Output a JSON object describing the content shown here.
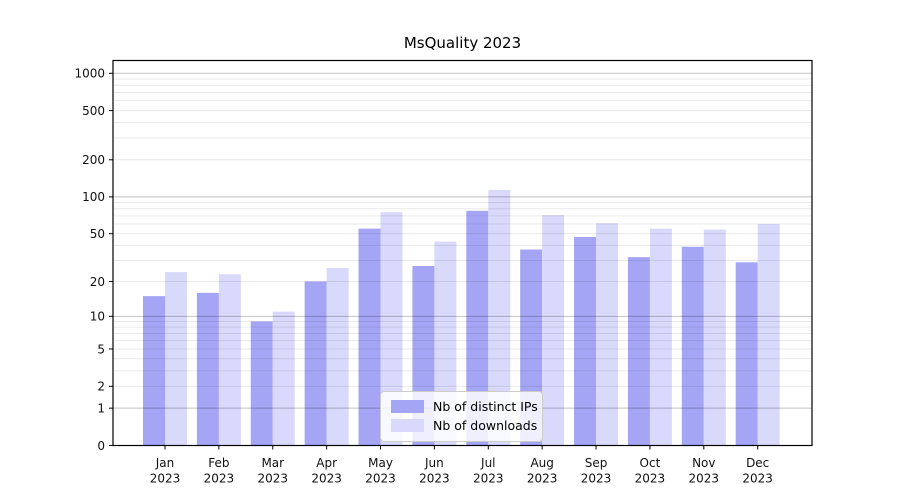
{
  "title": "MsQuality 2023",
  "chart_data": {
    "type": "bar",
    "title": "MsQuality 2023",
    "categories": [
      "Jan",
      "Feb",
      "Mar",
      "Apr",
      "May",
      "Jun",
      "Jul",
      "Aug",
      "Sep",
      "Oct",
      "Nov",
      "Dec"
    ],
    "year": "2023",
    "series": [
      {
        "name": "Nb of distinct IPs",
        "color": "#a5a5f6",
        "values": [
          15,
          16,
          9,
          20,
          55,
          27,
          77,
          37,
          47,
          32,
          39,
          29
        ]
      },
      {
        "name": "Nb of downloads",
        "color": "#d9d9fb",
        "values": [
          24,
          23,
          11,
          26,
          75,
          43,
          114,
          71,
          61,
          55,
          54,
          60
        ]
      }
    ],
    "y_scale": "log10(1+x)",
    "y_ticks": [
      0,
      1,
      2,
      5,
      10,
      20,
      50,
      100,
      200,
      500,
      1000
    ],
    "y_major_gridlines": [
      1,
      10,
      100,
      1000
    ],
    "ylim": [
      0,
      1250
    ],
    "grid": true,
    "legend_position": "lower center",
    "colors": {
      "major_grid": "rgba(0,0,0,0.24)",
      "minor_grid": "rgba(0,0,0,0.085)",
      "axis": "#000000"
    }
  }
}
